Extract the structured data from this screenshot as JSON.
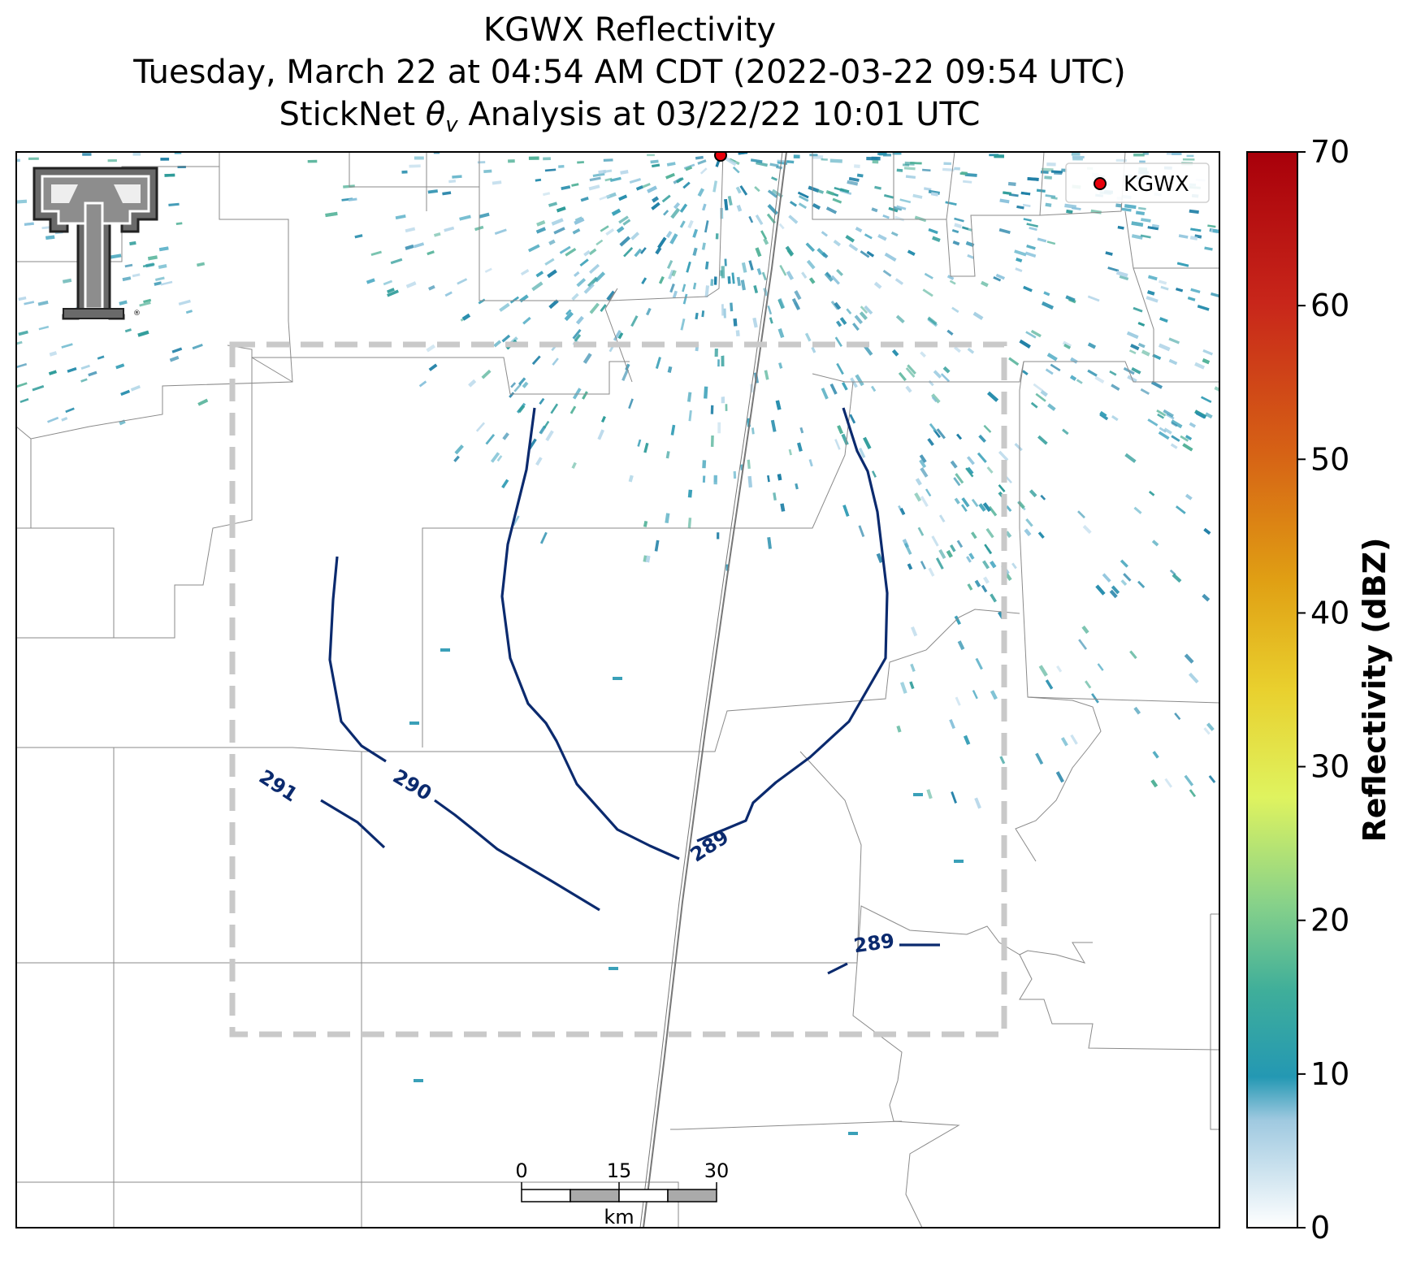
{
  "title": {
    "line1": "KGWX Reflectivity",
    "line2": "Tuesday, March 22 at 04:54 AM CDT (2022-03-22 09:54 UTC)",
    "line3_prefix": "StickNet ",
    "line3_symbol": "θ",
    "line3_sub": "v",
    "line3_suffix": " Analysis at 03/22/22 10:01 UTC"
  },
  "legend": {
    "station_label": "KGWX",
    "marker_color": "#e8000b"
  },
  "colorbar": {
    "label": "Reflectivity (dBZ)",
    "ticks": [
      "0",
      "10",
      "20",
      "30",
      "40",
      "50",
      "60",
      "70"
    ],
    "range": [
      0,
      70
    ]
  },
  "contours": [
    {
      "label": "291",
      "value": 291
    },
    {
      "label": "290",
      "value": 290
    },
    {
      "label": "289",
      "value": 289
    },
    {
      "label": "289",
      "value": 289
    }
  ],
  "scale_bar": {
    "ticks": [
      "0",
      "15",
      "30"
    ],
    "unit": "km"
  },
  "logo": {
    "name": "texas-tech-double-t"
  },
  "colors": {
    "contour": "#0b2a6e",
    "analysis_box": "#c8c8c8",
    "county_lines": "#8a8a8a"
  }
}
